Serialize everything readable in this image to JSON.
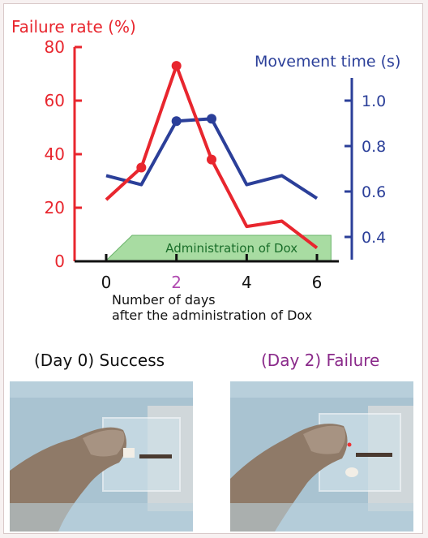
{
  "chart_data": {
    "type": "line",
    "x": [
      0,
      1,
      2,
      3,
      4,
      5,
      6
    ],
    "xticks": [
      "0",
      "2",
      "4",
      "6"
    ],
    "highlight_tick": "2",
    "xlabel_line1": "Number of days",
    "xlabel_line2": "after the administration of Dox",
    "left_axis": {
      "label": "Failure rate (%)",
      "ylim": [
        0,
        80
      ],
      "ticks": [
        "0",
        "20",
        "40",
        "60",
        "80"
      ],
      "color": "#e8262e"
    },
    "right_axis": {
      "label": "Movement time (s)",
      "ylim": [
        0.3,
        1.1
      ],
      "ticks": [
        "0.4",
        "0.6",
        "0.8",
        "1.0"
      ],
      "color": "#2b3f99"
    },
    "series": [
      {
        "axis": "left",
        "color": "#e8262e",
        "values": [
          23,
          35,
          73,
          38,
          13,
          15,
          5
        ],
        "markers": [
          1,
          2,
          3
        ]
      },
      {
        "axis": "right",
        "color": "#2b3f99",
        "values": [
          0.67,
          0.63,
          0.91,
          0.92,
          0.63,
          0.67,
          0.57
        ],
        "markers": [
          2,
          3
        ]
      }
    ],
    "annotation": {
      "text": "Administration of Dox",
      "x_start": 0,
      "x_end": 6.4,
      "fill": "#a8dca2",
      "text_color": "#1a6e2a"
    }
  },
  "captions": {
    "day0": "(Day 0) Success",
    "day2": "(Day 2) Failure",
    "day0_color": "#111111",
    "day2_color": "#8a2a8a"
  },
  "photos": {
    "day0": "photo of a monkey paw reaching into a clear acrylic box",
    "day2": "photo of a monkey paw reaching into a clear acrylic box"
  }
}
